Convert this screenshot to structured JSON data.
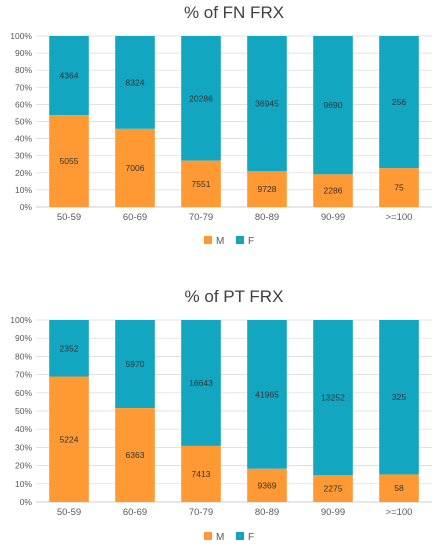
{
  "chart_data": [
    {
      "type": "bar",
      "stacked": true,
      "normalized": true,
      "title": "% of FN FRX",
      "categories": [
        "50-59",
        "60-69",
        "70-79",
        "80-89",
        "90-99",
        ">=100"
      ],
      "series": [
        {
          "name": "M",
          "color": "#ff9933",
          "values": [
            5055,
            7006,
            7551,
            9728,
            2286,
            75
          ]
        },
        {
          "name": "F",
          "color": "#12a6c0",
          "values": [
            4364,
            8324,
            20286,
            36945,
            9690,
            256
          ]
        }
      ],
      "yticks": [
        "0%",
        "10%",
        "20%",
        "30%",
        "40%",
        "50%",
        "60%",
        "70%",
        "80%",
        "90%",
        "100%"
      ],
      "ylim": [
        0,
        100
      ],
      "grid": true,
      "legend": "bottom-center",
      "legend_labels": [
        "M",
        "F"
      ]
    },
    {
      "type": "bar",
      "stacked": true,
      "normalized": true,
      "title": "% of PT FRX",
      "categories": [
        "50-59",
        "60-69",
        "70-79",
        "80-89",
        "90-99",
        ">=100"
      ],
      "series": [
        {
          "name": "M",
          "color": "#ff9933",
          "values": [
            5224,
            6363,
            7413,
            9369,
            2275,
            58
          ]
        },
        {
          "name": "F",
          "color": "#12a6c0",
          "values": [
            2352,
            5970,
            16643,
            41965,
            13252,
            325
          ]
        }
      ],
      "yticks": [
        "0%",
        "10%",
        "20%",
        "30%",
        "40%",
        "50%",
        "60%",
        "70%",
        "80%",
        "90%",
        "100%"
      ],
      "ylim": [
        0,
        100
      ],
      "grid": true,
      "legend": "bottom-center",
      "legend_labels": [
        "M",
        "F"
      ]
    }
  ]
}
